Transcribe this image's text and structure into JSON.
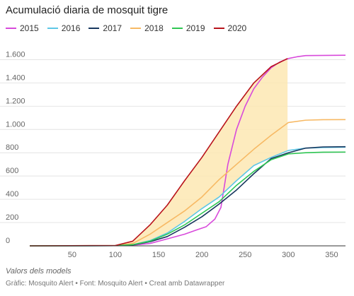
{
  "chart_data": {
    "type": "line",
    "title": "Acumulació diaria de mosquit tigre",
    "notes": "Valors dels models",
    "footer": "Gràfic: Mosquito Alert • Font: Mosquito Alert • Creat amb Datawrapper",
    "xlim": [
      1,
      366
    ],
    "ylim": [
      0,
      1700
    ],
    "xticks": [
      50,
      100,
      150,
      200,
      250,
      300,
      350
    ],
    "yticks": [
      0,
      200,
      400,
      600,
      800,
      1000,
      1200,
      1400,
      1600
    ],
    "ytick_labels": [
      "0",
      "200",
      "400",
      "600",
      "800",
      "1.000",
      "1.200",
      "1.400",
      "1.600"
    ],
    "grid": true,
    "legend_position": "top-left",
    "band": {
      "lower_series": "2016",
      "upper_series": "2020",
      "x_range": [
        100,
        299
      ],
      "color": "#fde7b3"
    },
    "series": [
      {
        "name": "2015",
        "color": "#d84adb",
        "x": [
          1,
          100,
          120,
          140,
          160,
          180,
          195,
          205,
          215,
          222,
          230,
          240,
          250,
          260,
          270,
          280,
          290,
          300,
          310,
          320,
          366
        ],
        "y": [
          0,
          2,
          6,
          20,
          60,
          100,
          140,
          165,
          230,
          330,
          700,
          1000,
          1200,
          1350,
          1450,
          1530,
          1580,
          1610,
          1625,
          1635,
          1638
        ]
      },
      {
        "name": "2016",
        "color": "#5ec7e6",
        "x": [
          1,
          100,
          120,
          140,
          160,
          180,
          200,
          220,
          240,
          260,
          280,
          300,
          320,
          340,
          366
        ],
        "y": [
          0,
          2,
          10,
          45,
          110,
          210,
          320,
          420,
          560,
          690,
          760,
          820,
          840,
          845,
          848
        ]
      },
      {
        "name": "2017",
        "color": "#17375e",
        "x": [
          1,
          100,
          120,
          140,
          160,
          180,
          200,
          220,
          240,
          260,
          280,
          300,
          320,
          340,
          366
        ],
        "y": [
          0,
          2,
          8,
          35,
          80,
          160,
          250,
          360,
          480,
          620,
          750,
          800,
          840,
          850,
          852
        ]
      },
      {
        "name": "2018",
        "color": "#f7b964",
        "x": [
          1,
          100,
          120,
          140,
          160,
          180,
          200,
          220,
          240,
          260,
          280,
          300,
          320,
          340,
          366
        ],
        "y": [
          0,
          3,
          20,
          100,
          200,
          300,
          420,
          570,
          700,
          830,
          950,
          1060,
          1080,
          1084,
          1085
        ]
      },
      {
        "name": "2019",
        "color": "#2fc653",
        "x": [
          1,
          100,
          120,
          140,
          160,
          180,
          200,
          220,
          240,
          260,
          280,
          300,
          320,
          340,
          366
        ],
        "y": [
          0,
          2,
          10,
          40,
          100,
          180,
          280,
          380,
          520,
          640,
          740,
          790,
          800,
          805,
          806
        ]
      },
      {
        "name": "2020",
        "color": "#b8131b",
        "x": [
          1,
          100,
          120,
          140,
          160,
          180,
          200,
          220,
          240,
          260,
          280,
          299
        ],
        "y": [
          0,
          3,
          40,
          180,
          350,
          560,
          760,
          980,
          1200,
          1400,
          1540,
          1610
        ]
      }
    ]
  }
}
